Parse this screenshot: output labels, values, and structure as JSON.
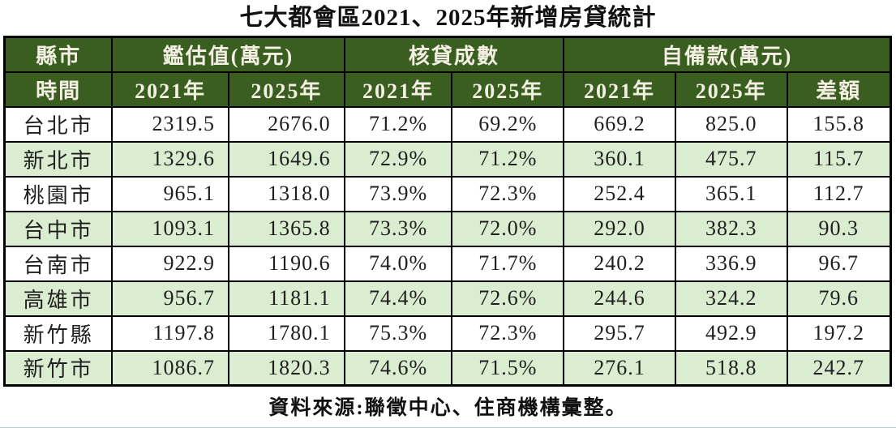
{
  "title": "七大都會區2021、2025年新增房貸統計",
  "table": {
    "corner": {
      "region_label": "縣市",
      "time_label": "時間"
    },
    "groups": [
      {
        "label": "鑑估值(萬元)",
        "years": [
          "2021年",
          "2025年"
        ]
      },
      {
        "label": "核貸成數",
        "years": [
          "2021年",
          "2025年"
        ]
      },
      {
        "label": "自備款(萬元)",
        "years": [
          "2021年",
          "2025年",
          "差額"
        ]
      }
    ],
    "rows": [
      {
        "city": "台北市",
        "values": [
          "2319.5",
          "2676.0",
          "71.2%",
          "69.2%",
          "669.2",
          "825.0",
          "155.8"
        ]
      },
      {
        "city": "新北市",
        "values": [
          "1329.6",
          "1649.6",
          "72.9%",
          "71.2%",
          "360.1",
          "475.7",
          "115.7"
        ]
      },
      {
        "city": "桃園市",
        "values": [
          "965.1",
          "1318.0",
          "73.9%",
          "72.3%",
          "252.4",
          "365.1",
          "112.7"
        ]
      },
      {
        "city": "台中市",
        "values": [
          "1093.1",
          "1365.8",
          "73.3%",
          "72.0%",
          "292.0",
          "382.3",
          "90.3"
        ]
      },
      {
        "city": "台南市",
        "values": [
          "922.9",
          "1190.6",
          "74.0%",
          "71.7%",
          "240.2",
          "336.9",
          "96.7"
        ]
      },
      {
        "city": "高雄市",
        "values": [
          "956.7",
          "1181.1",
          "74.4%",
          "72.6%",
          "244.6",
          "324.2",
          "79.6"
        ]
      },
      {
        "city": "新竹縣",
        "values": [
          "1197.8",
          "1780.1",
          "75.3%",
          "72.3%",
          "295.7",
          "492.9",
          "197.2"
        ]
      },
      {
        "city": "新竹市",
        "values": [
          "1086.7",
          "1820.3",
          "74.6%",
          "71.5%",
          "276.1",
          "518.8",
          "242.7"
        ]
      }
    ]
  },
  "footer": "資料來源:聯徵中心、住商機構彙整。",
  "colors": {
    "header_green": "#3A5E20",
    "row_alt_green": "#DAEDD0",
    "header_text": "#F3EFE2",
    "border_black": "#000000",
    "data_text": "#1F1F1F"
  },
  "chart_data": {
    "type": "table",
    "title": "七大都會區2021、2025年新增房貸統計",
    "column_groups": [
      {
        "group": "鑑估值(萬元)",
        "columns": [
          "2021年",
          "2025年"
        ]
      },
      {
        "group": "核貸成數",
        "columns": [
          "2021年",
          "2025年"
        ]
      },
      {
        "group": "自備款(萬元)",
        "columns": [
          "2021年",
          "2025年",
          "差額"
        ]
      }
    ],
    "columns": [
      "縣市/時間",
      "鑑估值(萬元)2021年",
      "鑑估值(萬元)2025年",
      "核貸成數2021年",
      "核貸成數2025年",
      "自備款(萬元)2021年",
      "自備款(萬元)2025年",
      "自備款差額"
    ],
    "rows": [
      [
        "台北市",
        2319.5,
        2676.0,
        "71.2%",
        "69.2%",
        669.2,
        825.0,
        155.8
      ],
      [
        "新北市",
        1329.6,
        1649.6,
        "72.9%",
        "71.2%",
        360.1,
        475.7,
        115.7
      ],
      [
        "桃園市",
        965.1,
        1318.0,
        "73.9%",
        "72.3%",
        252.4,
        365.1,
        112.7
      ],
      [
        "台中市",
        1093.1,
        1365.8,
        "73.3%",
        "72.0%",
        292.0,
        382.3,
        90.3
      ],
      [
        "台南市",
        922.9,
        1190.6,
        "74.0%",
        "71.7%",
        240.2,
        336.9,
        96.7
      ],
      [
        "高雄市",
        956.7,
        1181.1,
        "74.4%",
        "72.6%",
        244.6,
        324.2,
        79.6
      ],
      [
        "新竹縣",
        1197.8,
        1780.1,
        "75.3%",
        "72.3%",
        295.7,
        492.9,
        197.2
      ],
      [
        "新竹市",
        1086.7,
        1820.3,
        "74.6%",
        "71.5%",
        276.1,
        518.8,
        242.7
      ]
    ],
    "source": "資料來源:聯徵中心、住商機構彙整。",
    "row_striping": "alternating white / light green starting white"
  }
}
